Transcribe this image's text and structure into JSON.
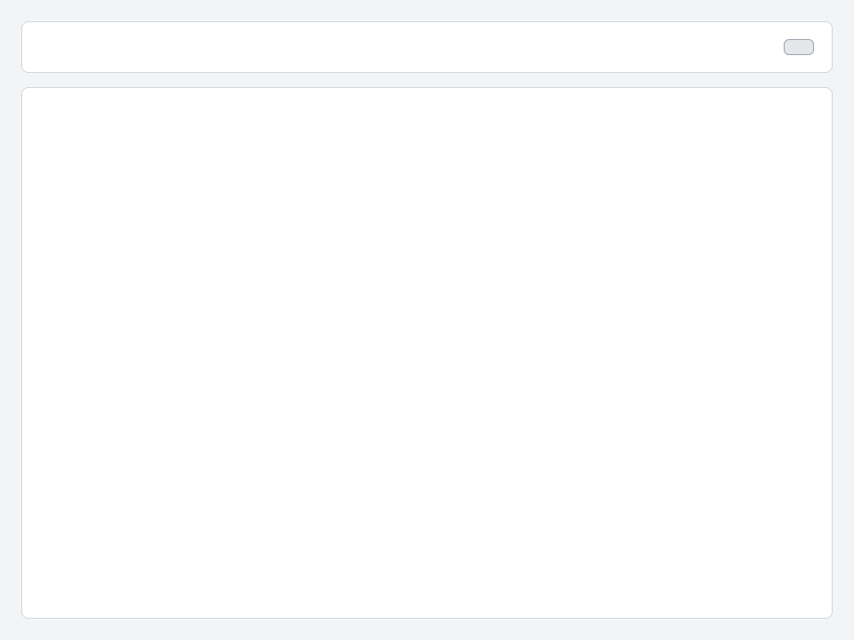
{
  "header": {
    "title": "",
    "action_label": ""
  },
  "main": {
    "note": ""
  }
}
